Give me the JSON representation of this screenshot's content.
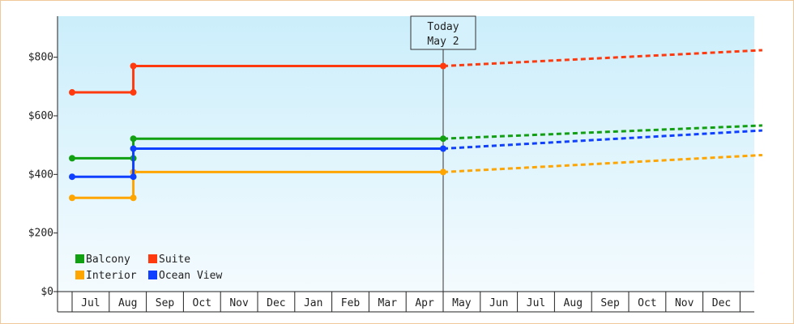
{
  "chart_data": {
    "type": "line",
    "step": true,
    "yticks": [
      "$0",
      "$200",
      "$400",
      "$600",
      "$800"
    ],
    "ytick_values": [
      0,
      200,
      400,
      600,
      800
    ],
    "ylim": [
      0,
      940
    ],
    "x_months": [
      "Jul",
      "Aug",
      "Sep",
      "Oct",
      "Nov",
      "Dec",
      "Jan",
      "Feb",
      "Mar",
      "Apr",
      "May",
      "Jun",
      "Jul",
      "Aug",
      "Sep",
      "Oct",
      "Nov",
      "Dec"
    ],
    "x_domain": [
      0,
      18.6
    ],
    "today": {
      "line1": "Today",
      "line2": "May 2",
      "x": 10.0
    },
    "grid": false,
    "background": "light blue gradient",
    "legend_position": "bottom-left",
    "series": [
      {
        "name": "Balcony",
        "color": "#11a011",
        "history": [
          [
            0,
            455
          ],
          [
            1.65,
            455
          ],
          [
            1.65,
            522
          ],
          [
            10.0,
            522
          ]
        ],
        "markers": [
          [
            0,
            455
          ],
          [
            1.65,
            455
          ],
          [
            1.65,
            522
          ],
          [
            10.0,
            522
          ]
        ],
        "forecast": [
          [
            10.0,
            522
          ],
          [
            18.6,
            567
          ]
        ]
      },
      {
        "name": "Suite",
        "color": "#ff3a0f",
        "history": [
          [
            0,
            680
          ],
          [
            1.65,
            680
          ],
          [
            1.65,
            770
          ],
          [
            10.0,
            770
          ]
        ],
        "markers": [
          [
            0,
            680
          ],
          [
            1.65,
            680
          ],
          [
            1.65,
            770
          ],
          [
            10.0,
            770
          ]
        ],
        "forecast": [
          [
            10.0,
            770
          ],
          [
            18.6,
            824
          ]
        ]
      },
      {
        "name": "Interior",
        "color": "#ffa500",
        "history": [
          [
            0,
            320
          ],
          [
            1.65,
            320
          ],
          [
            1.65,
            408
          ],
          [
            10.0,
            408
          ]
        ],
        "markers": [
          [
            0,
            320
          ],
          [
            1.65,
            320
          ],
          [
            1.65,
            408
          ],
          [
            10.0,
            408
          ]
        ],
        "forecast": [
          [
            10.0,
            408
          ],
          [
            18.6,
            466
          ]
        ]
      },
      {
        "name": "Ocean View",
        "color": "#1040ff",
        "history": [
          [
            0,
            392
          ],
          [
            1.65,
            392
          ],
          [
            1.65,
            488
          ],
          [
            10.0,
            488
          ]
        ],
        "markers": [
          [
            0,
            392
          ],
          [
            1.65,
            392
          ],
          [
            1.65,
            488
          ],
          [
            10.0,
            488
          ]
        ],
        "forecast": [
          [
            10.0,
            488
          ],
          [
            18.6,
            550
          ]
        ]
      }
    ]
  }
}
